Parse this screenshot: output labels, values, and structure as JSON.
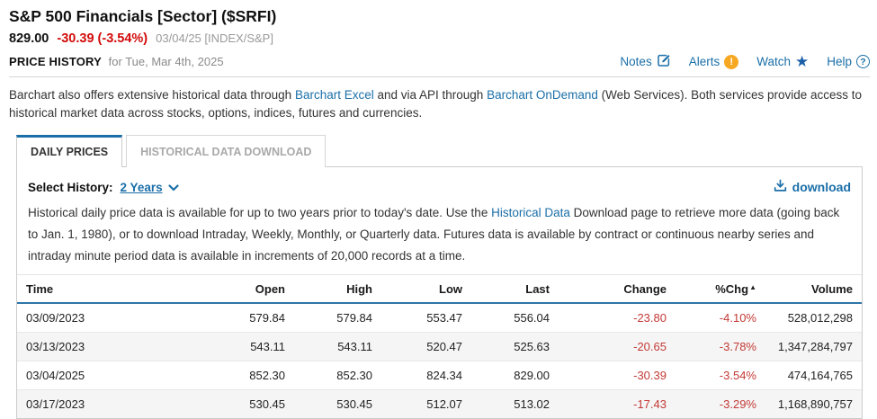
{
  "header": {
    "title": "S&P 500 Financials [Sector] ($SRFI)",
    "last_price": "829.00",
    "change": "-30.39 (-3.54%)",
    "quote_meta": "03/04/25 [INDEX/S&P]",
    "section_label": "PRICE HISTORY",
    "section_date": "for Tue, Mar 4th, 2025",
    "links": {
      "notes": "Notes",
      "alerts": "Alerts",
      "alerts_badge": "!",
      "watch": "Watch",
      "help": "Help",
      "help_glyph": "?"
    }
  },
  "intro": {
    "part1": "Barchart also offers extensive historical data through ",
    "link1": "Barchart Excel",
    "part2": " and via API through ",
    "link2": "Barchart OnDemand",
    "part3": " (Web Services). Both services provide access to historical market data across stocks, options, indices, futures and currencies."
  },
  "tabs": {
    "daily": "DAILY PRICES",
    "historical": "HISTORICAL DATA DOWNLOAD"
  },
  "panel": {
    "select_label": "Select History:",
    "select_value": "2 Years",
    "download_label": "download",
    "desc_part1": "Historical daily price data is available for up to two years prior to today's date. Use the ",
    "desc_link": "Historical Data",
    "desc_part2": " Download page to retrieve more data (going back to Jan. 1, 1980), or to download Intraday, Weekly, Monthly, or Quarterly data. Futures data is available by contract or continuous nearby series and intraday minute period data is available in increments of 20,000 records at a time."
  },
  "table": {
    "columns": [
      {
        "label": "Time",
        "align": "left"
      },
      {
        "label": "Open"
      },
      {
        "label": "High"
      },
      {
        "label": "Low"
      },
      {
        "label": "Last"
      },
      {
        "label": "Change"
      },
      {
        "label": "%Chg",
        "sorted": "asc"
      },
      {
        "label": "Volume"
      }
    ],
    "rows": [
      {
        "time": "03/09/2023",
        "open": "579.84",
        "high": "579.84",
        "low": "553.47",
        "last": "556.04",
        "change": "-23.80",
        "pct_chg": "-4.10%",
        "volume": "528,012,298"
      },
      {
        "time": "03/13/2023",
        "open": "543.11",
        "high": "543.11",
        "low": "520.47",
        "last": "525.63",
        "change": "-20.65",
        "pct_chg": "-3.78%",
        "volume": "1,347,284,797"
      },
      {
        "time": "03/04/2025",
        "open": "852.30",
        "high": "852.30",
        "low": "824.34",
        "last": "829.00",
        "change": "-30.39",
        "pct_chg": "-3.54%",
        "volume": "474,164,765"
      },
      {
        "time": "03/17/2023",
        "open": "530.45",
        "high": "530.45",
        "low": "512.07",
        "last": "513.02",
        "change": "-17.43",
        "pct_chg": "-3.29%",
        "volume": "1,168,890,757"
      }
    ]
  },
  "colors": {
    "accent_blue": "#1b6fa8",
    "negative_red_header": "#d20b0b",
    "negative_red_table": "#c33a36",
    "alert_orange": "#f7a823",
    "table_header_underline": "#2e75a8",
    "row_stripe": "#f5f5f5"
  }
}
